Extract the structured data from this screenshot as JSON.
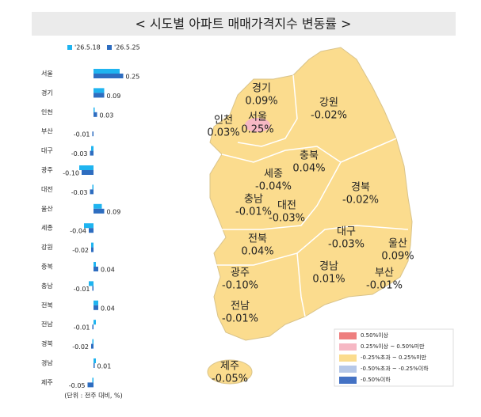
{
  "chart_data": [
    {
      "type": "bar",
      "orientation": "horizontal",
      "title": "< 시도별 아파트 매매가격지수 변동률 >",
      "note": "(단위 : 전주 대비, %)",
      "categories": [
        "서울",
        "경기",
        "인천",
        "부산",
        "대구",
        "광주",
        "대전",
        "울산",
        "세종",
        "강원",
        "충북",
        "충남",
        "전북",
        "전남",
        "경북",
        "경남",
        "제주"
      ],
      "series": [
        {
          "name": "'26.5.18",
          "color": "#1fb4f0",
          "values": [
            0.22,
            0.09,
            0.01,
            0.0,
            -0.02,
            -0.12,
            -0.01,
            0.07,
            -0.08,
            -0.02,
            0.02,
            -0.04,
            0.04,
            0.02,
            -0.01,
            0.02,
            -0.01
          ]
        },
        {
          "name": "'26.5.25",
          "color": "#2e6dc0",
          "values": [
            0.25,
            0.09,
            0.03,
            -0.01,
            -0.03,
            -0.1,
            -0.03,
            0.09,
            -0.04,
            -0.02,
            0.04,
            -0.01,
            0.04,
            -0.01,
            -0.02,
            0.01,
            -0.05
          ],
          "value_labels": [
            "0.25",
            "0.09",
            "0.03",
            "-0.01",
            "-0.03",
            "-0.10",
            "-0.03",
            "0.09",
            "-0.04",
            "-0.02",
            "0.04",
            "-0.01",
            "0.04",
            "-0.01",
            "-0.02",
            "0.01",
            "-0.05"
          ]
        }
      ]
    },
    {
      "type": "map",
      "categories": [
        "서울",
        "경기",
        "인천",
        "부산",
        "대구",
        "광주",
        "대전",
        "울산",
        "세종",
        "강원",
        "충북",
        "충남",
        "전북",
        "전남",
        "경북",
        "경남",
        "제주"
      ],
      "values": [
        0.25,
        0.09,
        0.03,
        -0.01,
        -0.03,
        -0.1,
        -0.03,
        0.09,
        -0.04,
        -0.02,
        0.04,
        -0.01,
        0.04,
        -0.01,
        -0.02,
        0.01,
        -0.05
      ],
      "value_labels": [
        "0.25%",
        "0.09%",
        "0.03%",
        "-0.01%",
        "-0.03%",
        "-0.10%",
        "-0.03%",
        "0.09%",
        "-0.04%",
        "-0.02%",
        "0.04%",
        "-0.01%",
        "0.04%",
        "-0.01%",
        "-0.02%",
        "0.01%",
        "-0.05%"
      ],
      "legend": [
        {
          "label": "0.50%이상",
          "color": "#ee7f7f"
        },
        {
          "label": "0.25%이상 ~ 0.50%미만",
          "color": "#f6b8c4"
        },
        {
          "label": "-0.25%초과 ~ 0.25%미만",
          "color": "#fbdc8e"
        },
        {
          "label": "-0.50%초과 ~ -0.25%이하",
          "color": "#b6c8e8"
        },
        {
          "label": "-0.50%이하",
          "color": "#4472c4"
        }
      ]
    }
  ]
}
